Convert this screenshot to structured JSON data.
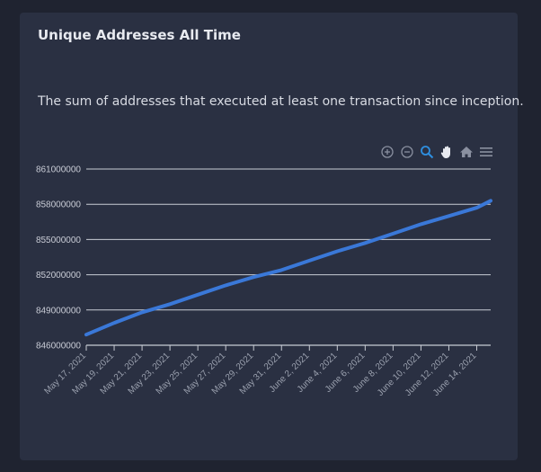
{
  "card": {
    "title": "Unique Addresses All Time",
    "description": "The sum of addresses that executed at least one transaction since inception."
  },
  "toolbar": {
    "icons": [
      "zoom-in-icon",
      "zoom-out-icon",
      "zoom-select-icon",
      "pan-icon",
      "home-icon",
      "menu-icon"
    ],
    "active": "zoom-select-icon",
    "accent": "#2e8fe0"
  },
  "colors": {
    "line": "#3a78d8",
    "grid": "#c8ccd4",
    "background": "#2a3042"
  },
  "chart_data": {
    "type": "line",
    "title": "",
    "xlabel": "",
    "ylabel": "",
    "ylim": [
      846000000,
      861000000
    ],
    "yticks": [
      846000000,
      849000000,
      852000000,
      855000000,
      858000000,
      861000000
    ],
    "ytick_labels": [
      "846000000",
      "849000000",
      "852000000",
      "855000000",
      "858000000",
      "861000000"
    ],
    "xticks": [
      "May 17, 2021",
      "May 19, 2021",
      "May 21, 2021",
      "May 23, 2021",
      "May 25, 2021",
      "May 27, 2021",
      "May 29, 2021",
      "May 31, 2021",
      "June 2, 2021",
      "June 4, 2021",
      "June 6, 2021",
      "June 8, 2021",
      "June 10, 2021",
      "June 12, 2021",
      "June 14, 2021"
    ],
    "grid": true,
    "series": [
      {
        "x": [
          "May 17, 2021",
          "May 19, 2021",
          "May 21, 2021",
          "May 23, 2021",
          "May 25, 2021",
          "May 27, 2021",
          "May 29, 2021",
          "May 31, 2021",
          "June 2, 2021",
          "June 4, 2021",
          "June 6, 2021",
          "June 8, 2021",
          "June 10, 2021",
          "June 12, 2021",
          "June 14, 2021",
          "June 15, 2021"
        ],
        "values": [
          846900000,
          847900000,
          848800000,
          849500000,
          850300000,
          851100000,
          851800000,
          852400000,
          853200000,
          854000000,
          854700000,
          855500000,
          856300000,
          857000000,
          857700000,
          858300000
        ]
      }
    ]
  }
}
